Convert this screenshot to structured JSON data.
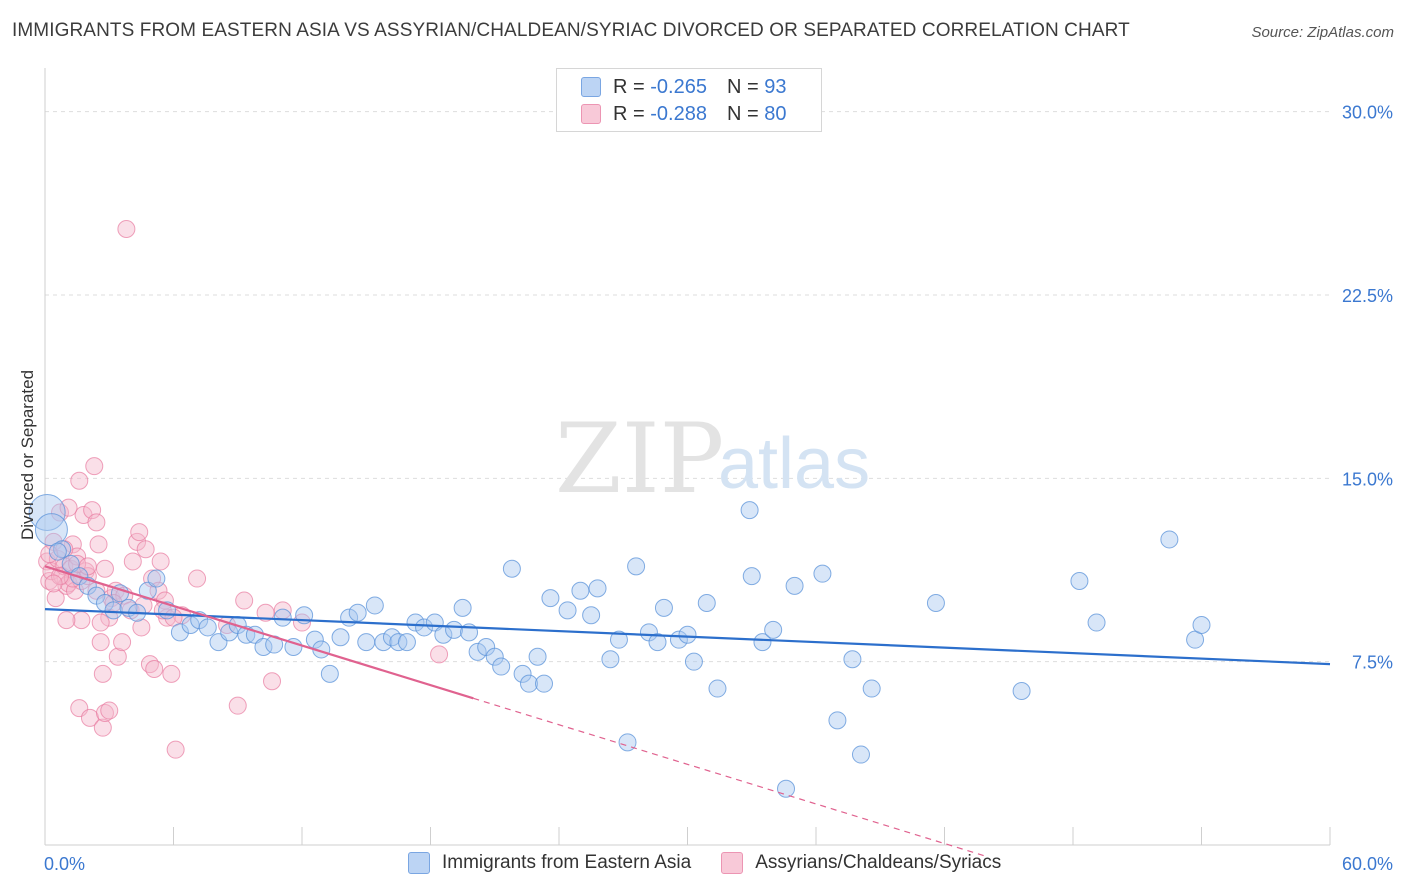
{
  "title": "IMMIGRANTS FROM EASTERN ASIA VS ASSYRIAN/CHALDEAN/SYRIAC DIVORCED OR SEPARATED CORRELATION CHART",
  "source": "Source: ZipAtlas.com",
  "watermark": {
    "zip": "ZIP",
    "atlas": "atlas"
  },
  "legend": {
    "r_label": "R =",
    "n_label": "N =",
    "series": [
      {
        "r": "-0.265",
        "n": "93"
      },
      {
        "r": "-0.288",
        "n": "80"
      }
    ]
  },
  "colors": {
    "blue_fill": "#a9c8f0",
    "blue_stroke": "#5b93da",
    "blue_line": "#2c6fcc",
    "pink_fill": "#f5b8cc",
    "pink_stroke": "#e87aa0",
    "pink_line": "#e0628f",
    "tick_text": "#3b78d0",
    "grid": "#dddddd"
  },
  "chart_data": {
    "type": "scatter",
    "title": "IMMIGRANTS FROM EASTERN ASIA VS ASSYRIAN/CHALDEAN/SYRIAC DIVORCED OR SEPARATED CORRELATION CHART",
    "xlabel": "",
    "ylabel": "Divorced or Separated",
    "xlim": [
      0,
      60
    ],
    "ylim": [
      0,
      31.5
    ],
    "x_tick_labels": [
      "0.0%",
      "60.0%"
    ],
    "y_ticks": [
      7.5,
      15.0,
      22.5,
      30.0
    ],
    "y_tick_labels": [
      "7.5%",
      "15.0%",
      "22.5%",
      "30.0%"
    ],
    "grid": "horizontal dashed",
    "legend_position": "top-center",
    "series": [
      {
        "name": "Immigrants from Eastern Asia",
        "color": "#a9c8f0",
        "trend": {
          "x": [
            0,
            60
          ],
          "y": [
            9.65,
            7.4
          ],
          "style": "solid"
        },
        "points": [
          [
            0.1,
            13.6
          ],
          [
            0.3,
            12.9
          ],
          [
            0.8,
            12.1
          ],
          [
            1.2,
            11.5
          ],
          [
            1.6,
            11.0
          ],
          [
            2.0,
            10.6
          ],
          [
            2.4,
            10.2
          ],
          [
            2.8,
            9.9
          ],
          [
            3.2,
            9.6
          ],
          [
            3.5,
            10.3
          ],
          [
            3.9,
            9.7
          ],
          [
            4.3,
            9.5
          ],
          [
            4.8,
            10.4
          ],
          [
            5.2,
            10.9
          ],
          [
            5.7,
            9.6
          ],
          [
            6.3,
            8.7
          ],
          [
            6.8,
            9.0
          ],
          [
            7.2,
            9.2
          ],
          [
            7.6,
            8.9
          ],
          [
            8.1,
            8.3
          ],
          [
            8.6,
            8.7
          ],
          [
            9.0,
            9.0
          ],
          [
            9.4,
            8.6
          ],
          [
            9.8,
            8.6
          ],
          [
            10.2,
            8.1
          ],
          [
            10.7,
            8.2
          ],
          [
            11.1,
            9.3
          ],
          [
            11.6,
            8.1
          ],
          [
            12.1,
            9.4
          ],
          [
            12.6,
            8.4
          ],
          [
            12.9,
            8.0
          ],
          [
            13.3,
            7.0
          ],
          [
            13.8,
            8.5
          ],
          [
            14.2,
            9.3
          ],
          [
            14.6,
            9.5
          ],
          [
            15.0,
            8.3
          ],
          [
            15.4,
            9.8
          ],
          [
            15.8,
            8.3
          ],
          [
            16.2,
            8.5
          ],
          [
            16.5,
            8.3
          ],
          [
            16.9,
            8.3
          ],
          [
            17.3,
            9.1
          ],
          [
            17.7,
            8.9
          ],
          [
            18.2,
            9.1
          ],
          [
            18.6,
            8.6
          ],
          [
            19.1,
            8.8
          ],
          [
            19.5,
            9.7
          ],
          [
            19.8,
            8.7
          ],
          [
            20.2,
            7.9
          ],
          [
            20.6,
            8.1
          ],
          [
            21.0,
            7.7
          ],
          [
            21.3,
            7.3
          ],
          [
            21.8,
            11.3
          ],
          [
            22.3,
            7.0
          ],
          [
            22.6,
            6.6
          ],
          [
            23.0,
            7.7
          ],
          [
            23.3,
            6.6
          ],
          [
            23.6,
            10.1
          ],
          [
            24.4,
            9.6
          ],
          [
            25.0,
            10.4
          ],
          [
            25.5,
            9.4
          ],
          [
            25.8,
            10.5
          ],
          [
            26.4,
            7.6
          ],
          [
            26.8,
            8.4
          ],
          [
            27.2,
            4.2
          ],
          [
            27.6,
            11.4
          ],
          [
            28.2,
            8.7
          ],
          [
            28.6,
            8.3
          ],
          [
            28.9,
            9.7
          ],
          [
            29.6,
            8.4
          ],
          [
            30.0,
            8.6
          ],
          [
            30.3,
            7.5
          ],
          [
            30.9,
            9.9
          ],
          [
            31.4,
            6.4
          ],
          [
            32.9,
            13.7
          ],
          [
            33.0,
            11.0
          ],
          [
            33.5,
            8.3
          ],
          [
            34.0,
            8.8
          ],
          [
            34.6,
            2.3
          ],
          [
            35.0,
            10.6
          ],
          [
            36.3,
            11.1
          ],
          [
            37.0,
            5.1
          ],
          [
            37.7,
            7.6
          ],
          [
            38.1,
            3.7
          ],
          [
            38.6,
            6.4
          ],
          [
            41.6,
            9.9
          ],
          [
            45.6,
            6.3
          ],
          [
            48.3,
            10.8
          ],
          [
            49.1,
            9.1
          ],
          [
            52.5,
            12.5
          ],
          [
            53.7,
            8.4
          ],
          [
            54.0,
            9.0
          ],
          [
            0.6,
            12.0
          ]
        ]
      },
      {
        "name": "Assyrians/Chaldeans/Syriacs",
        "color": "#f5b8cc",
        "trend": {
          "x": [
            0,
            20
          ],
          "y": [
            11.4,
            6.0
          ],
          "x_dashed_end": 44,
          "style": "solid then dashed"
        },
        "points": [
          [
            0.1,
            11.6
          ],
          [
            0.2,
            10.8
          ],
          [
            0.3,
            11.2
          ],
          [
            0.4,
            12.4
          ],
          [
            0.5,
            10.1
          ],
          [
            0.6,
            11.7
          ],
          [
            0.7,
            13.6
          ],
          [
            0.8,
            11.0
          ],
          [
            0.9,
            11.4
          ],
          [
            1.0,
            10.6
          ],
          [
            1.1,
            10.7
          ],
          [
            1.2,
            11.3
          ],
          [
            1.3,
            12.3
          ],
          [
            1.4,
            10.4
          ],
          [
            1.5,
            11.8
          ],
          [
            1.6,
            14.9
          ],
          [
            1.7,
            10.8
          ],
          [
            1.8,
            13.5
          ],
          [
            1.9,
            11.2
          ],
          [
            2.0,
            11.0
          ],
          [
            2.2,
            13.7
          ],
          [
            2.3,
            15.5
          ],
          [
            2.4,
            13.2
          ],
          [
            2.5,
            12.3
          ],
          [
            2.6,
            8.3
          ],
          [
            2.7,
            7.0
          ],
          [
            2.8,
            11.3
          ],
          [
            3.0,
            9.3
          ],
          [
            3.1,
            10.1
          ],
          [
            3.3,
            10.4
          ],
          [
            3.4,
            7.7
          ],
          [
            3.6,
            8.3
          ],
          [
            3.7,
            10.2
          ],
          [
            3.8,
            25.2
          ],
          [
            4.0,
            9.6
          ],
          [
            4.1,
            11.6
          ],
          [
            4.3,
            12.4
          ],
          [
            4.4,
            12.8
          ],
          [
            4.5,
            8.9
          ],
          [
            4.7,
            12.1
          ],
          [
            4.9,
            7.4
          ],
          [
            5.0,
            10.9
          ],
          [
            5.1,
            7.2
          ],
          [
            5.3,
            10.4
          ],
          [
            5.4,
            11.6
          ],
          [
            5.6,
            10.0
          ],
          [
            5.7,
            9.3
          ],
          [
            5.9,
            7.0
          ],
          [
            6.1,
            3.9
          ],
          [
            6.4,
            9.4
          ],
          [
            7.1,
            10.9
          ],
          [
            9.0,
            5.7
          ],
          [
            9.3,
            10.0
          ],
          [
            10.6,
            6.7
          ],
          [
            11.1,
            9.6
          ],
          [
            1.6,
            5.6
          ],
          [
            1.7,
            9.2
          ],
          [
            2.1,
            5.2
          ],
          [
            2.6,
            9.1
          ],
          [
            2.7,
            4.8
          ],
          [
            2.8,
            5.4
          ],
          [
            3.0,
            5.5
          ],
          [
            1.0,
            9.2
          ],
          [
            1.3,
            10.9
          ],
          [
            0.9,
            12.1
          ],
          [
            0.7,
            11.0
          ],
          [
            1.5,
            11.5
          ],
          [
            2.0,
            11.4
          ],
          [
            2.4,
            10.4
          ],
          [
            3.2,
            9.9
          ],
          [
            4.6,
            9.8
          ],
          [
            5.5,
            9.6
          ],
          [
            6.0,
            9.3
          ],
          [
            8.5,
            9.0
          ],
          [
            10.3,
            9.5
          ],
          [
            12.0,
            9.1
          ],
          [
            18.4,
            7.8
          ],
          [
            0.4,
            10.7
          ],
          [
            1.1,
            13.8
          ],
          [
            0.2,
            11.9
          ]
        ]
      }
    ]
  },
  "bottom_legend": [
    "Immigrants from Eastern Asia",
    "Assyrians/Chaldeans/Syriacs"
  ]
}
